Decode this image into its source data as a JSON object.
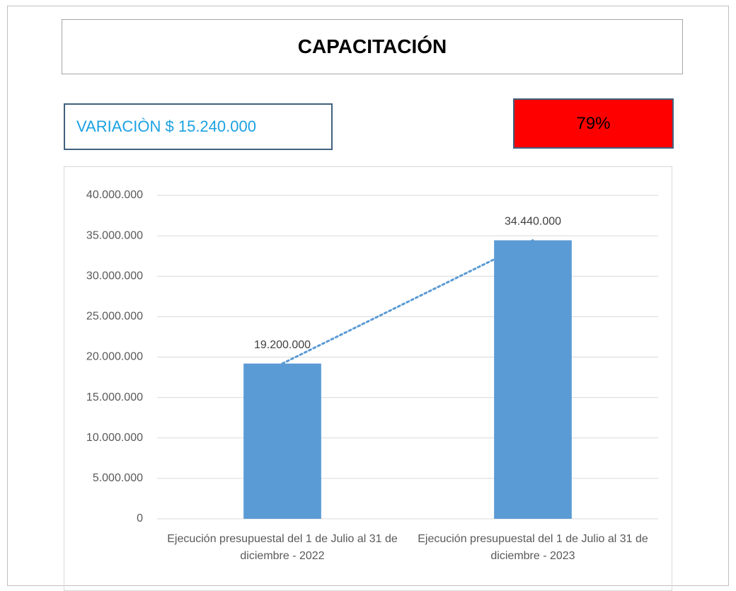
{
  "chart_data": {
    "type": "bar",
    "title": "CAPACITACIÓN",
    "annotations": [
      "VARIACIÒN $ 15.240.000",
      "79%"
    ],
    "categories": [
      "Ejecución presupuestal del 1 de Julio al 31 de diciembre - 2022",
      "Ejecución presupuestal del 1 de Julio al 31 de diciembre - 2023"
    ],
    "values": [
      19200000,
      34440000
    ],
    "value_labels": [
      "19.200.000",
      "34.440.000"
    ],
    "color": "#5b9bd5",
    "trendline": true,
    "ylim": [
      0,
      40000000
    ],
    "yticks": [
      0,
      {
        "value": 5000000,
        "label": "5.000.000"
      },
      {
        "value": 10000000,
        "label": "10.000.000"
      },
      {
        "value": 15000000,
        "label": "15.000.000"
      },
      {
        "value": 20000000,
        "label": "20.000.000"
      },
      {
        "value": 25000000,
        "label": "25.000.000"
      },
      {
        "value": 30000000,
        "label": "30.000.000"
      },
      {
        "value": 35000000,
        "label": "35.000.000"
      },
      {
        "value": 40000000,
        "label": "40.000.000"
      }
    ],
    "grid": true
  }
}
